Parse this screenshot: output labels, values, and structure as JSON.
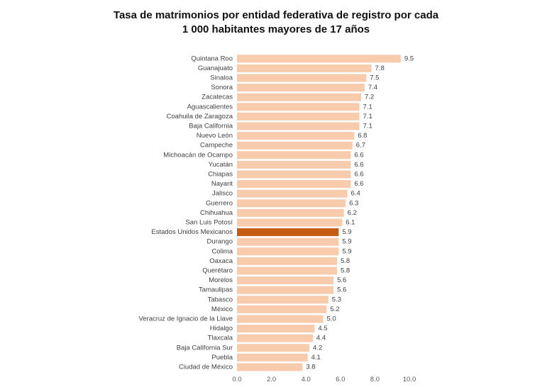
{
  "chart_data": {
    "type": "bar",
    "orientation": "horizontal",
    "title_line1": "Tasa de matrimonios por entidad federativa de registro por cada",
    "title_line2": "1 000 habitantes mayores de 17 años",
    "categories": [
      "Quintana Roo",
      "Guanajuato",
      "Sinaloa",
      "Sonora",
      "Zacatecas",
      "Aguascalientes",
      "Coahuila de Zaragoza",
      "Baja California",
      "Nuevo León",
      "Campeche",
      "Michoacán de Ocampo",
      "Yucatán",
      "Chiapas",
      "Nayarit",
      "Jalisco",
      "Guerrero",
      "Chihuahua",
      "San Luis Potosí",
      "Estados Unidos Mexicanos",
      "Durango",
      "Colima",
      "Oaxaca",
      "Querétaro",
      "Morelos",
      "Tamaulipas",
      "Tabasco",
      "México",
      "Veracruz de Ignacio de la Llave",
      "Hidalgo",
      "Tlaxcala",
      "Baja California Sur",
      "Puebla",
      "Ciudad de México"
    ],
    "values": [
      9.5,
      7.8,
      7.5,
      7.4,
      7.2,
      7.1,
      7.1,
      7.1,
      6.8,
      6.7,
      6.6,
      6.6,
      6.6,
      6.6,
      6.4,
      6.3,
      6.2,
      6.1,
      5.9,
      5.9,
      5.9,
      5.8,
      5.8,
      5.6,
      5.6,
      5.3,
      5.2,
      5.0,
      4.5,
      4.4,
      4.2,
      4.1,
      3.8
    ],
    "value_labels": [
      "9.5",
      "7.8",
      "7.5",
      "7.4",
      "7.2",
      "7.1",
      "7.1",
      "7.1",
      "6.8",
      "6.7",
      "6.6",
      "6.6",
      "6.6",
      "6.6",
      "6.4",
      "6.3",
      "6.2",
      "6.1",
      "5.9",
      "5.9",
      "5.9",
      "5.8",
      "5.8",
      "5.6",
      "5.6",
      "5.3",
      "5.2",
      "5.0",
      "4.5",
      "4.4",
      "4.2",
      "4.1",
      "3.8"
    ],
    "highlight_category": "Estados Unidos Mexicanos",
    "xlim": [
      0,
      10
    ],
    "xticks": [
      0,
      2,
      4,
      6,
      8,
      10
    ],
    "xtick_labels": [
      "0.0",
      "2.0",
      "4.0",
      "6.0",
      "8.0",
      "10.0"
    ],
    "xlabel": "",
    "ylabel": "",
    "grid": false,
    "colors": {
      "bar": "#f8cbad",
      "highlight": "#c55a11"
    }
  }
}
